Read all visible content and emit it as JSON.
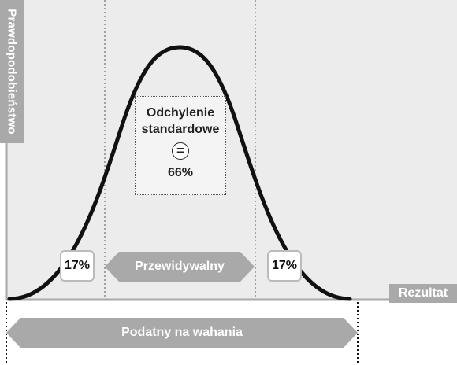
{
  "axes": {
    "y_label": "Prawdopodobieństwo",
    "x_label": "Rezultat"
  },
  "callout": {
    "title_line1": "Odchylenie",
    "title_line2": "standardowe",
    "symbol": "=",
    "value": "66%"
  },
  "tails": {
    "left_pct": "17%",
    "right_pct": "17%"
  },
  "ranges": {
    "center_label": "Przewidywalny",
    "full_label": "Podatny na wahania"
  },
  "colors": {
    "plot_background": "#ececec",
    "label_gray": "#a9a9a9",
    "curve": "#111111"
  }
}
